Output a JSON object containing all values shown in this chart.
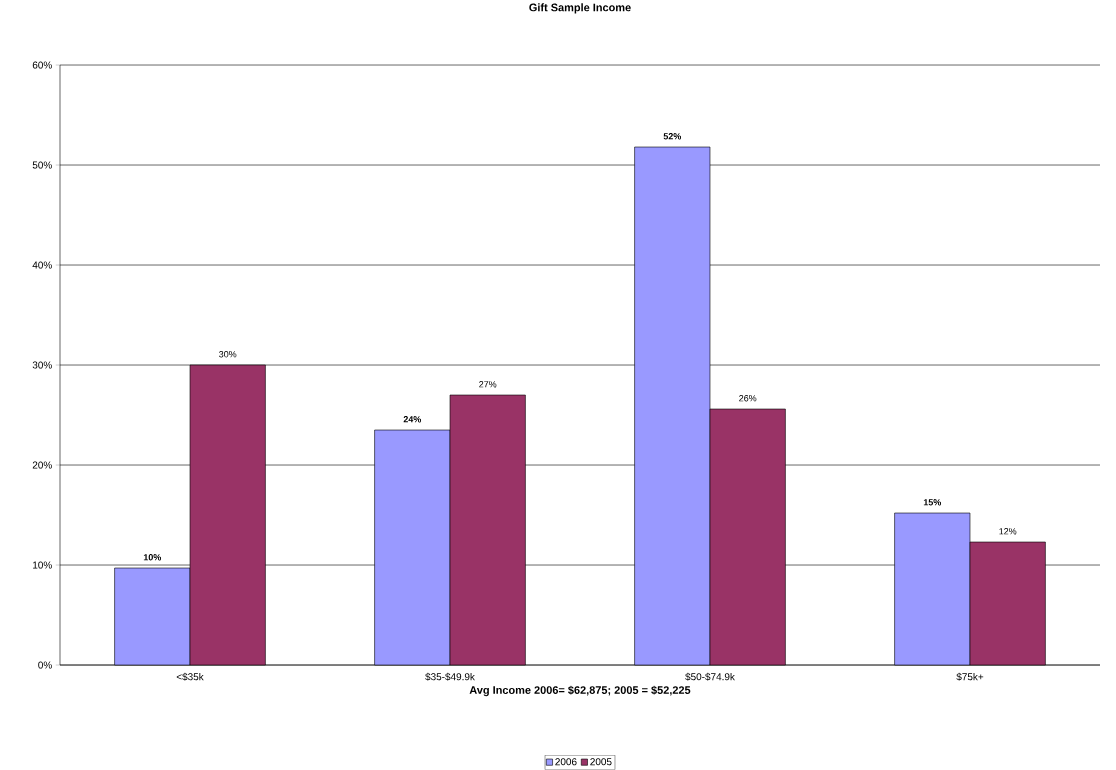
{
  "chart_data": {
    "type": "bar",
    "title": "Gift Sample Income",
    "xlabel": "Avg Income 2006= $62,875; 2005 = $52,225",
    "categories": [
      "<$35k",
      "$35-$49.9k",
      "$50-$74.9k",
      "$75k+"
    ],
    "series": [
      {
        "name": "2006",
        "color": "#9999ff",
        "values": [
          9.7,
          23.5,
          51.8,
          15.2
        ],
        "value_labels": [
          "10%",
          "24%",
          "52%",
          "15%"
        ]
      },
      {
        "name": "2005",
        "color": "#993366",
        "values": [
          30,
          27,
          25.6,
          12.3
        ],
        "value_labels": [
          "30%",
          "27%",
          "26%",
          "12%"
        ]
      }
    ],
    "ylim": [
      0,
      60
    ],
    "yticks": [
      {
        "value": 0,
        "label": "0%"
      },
      {
        "value": 10,
        "label": "10%"
      },
      {
        "value": 20,
        "label": "20%"
      },
      {
        "value": 30,
        "label": "30%"
      },
      {
        "value": 40,
        "label": "40%"
      },
      {
        "value": 50,
        "label": "50%"
      },
      {
        "value": 60,
        "label": "60%"
      }
    ],
    "grid": "y",
    "legend": "bottom"
  }
}
